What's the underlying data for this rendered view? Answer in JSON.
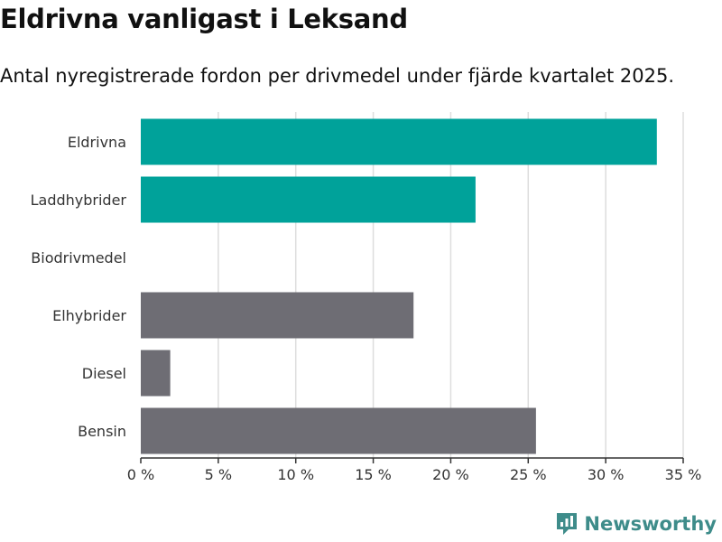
{
  "header": {
    "title": "Eldrivna vanligast i Leksand",
    "subtitle": "Antal nyregistrerade fordon per drivmedel under fjärde kvartalet 2025."
  },
  "brand": {
    "name": "Newsworthy",
    "color": "#3e8c8a"
  },
  "colors": {
    "highlight": "#00a29a",
    "default": "#6e6d74",
    "grid": "#dddddd",
    "axis": "#333333"
  },
  "chart_data": {
    "type": "bar",
    "orientation": "horizontal",
    "title": "Eldrivna vanligast i Leksand",
    "subtitle": "Antal nyregistrerade fordon per drivmedel under fjärde kvartalet 2025.",
    "categories": [
      "Eldrivna",
      "Laddhybrider",
      "Biodrivmedel",
      "Elhybrider",
      "Diesel",
      "Bensin"
    ],
    "values": [
      33.3,
      21.6,
      0,
      17.6,
      1.9,
      25.5
    ],
    "highlight": [
      true,
      true,
      false,
      false,
      false,
      false
    ],
    "xlabel": "",
    "ylabel": "",
    "xlim": [
      0,
      35
    ],
    "ticks": [
      0,
      5,
      10,
      15,
      20,
      25,
      30,
      35
    ],
    "tick_labels": [
      "0 %",
      "5 %",
      "10 %",
      "15 %",
      "20 %",
      "25 %",
      "30 %",
      "35 %"
    ],
    "grid": true,
    "legend": "none"
  }
}
